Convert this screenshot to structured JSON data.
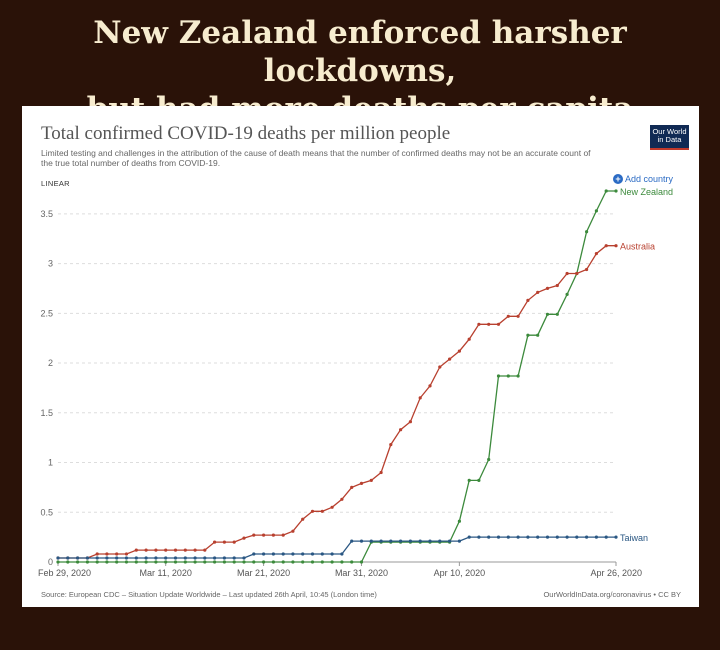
{
  "headline": {
    "line1": "New Zealand enforced harsher lockdowns,",
    "line2": "but had more deaths per capita"
  },
  "card": {
    "logo_line1": "Our World",
    "logo_line2": "in Data",
    "scale_label": "LINEAR",
    "add_country_label": "Add country",
    "source": "Source: European CDC – Situation Update Worldwide – Last updated 26th April, 10:45 (London time)",
    "credit": "OurWorldInData.org/coronavirus • CC BY"
  },
  "colors": {
    "new_zealand": "#3c8a3c",
    "australia": "#b8402f",
    "taiwan": "#2a5783",
    "background": "#2a1208",
    "headline_text": "#f7eccf"
  },
  "chart_data": {
    "type": "line",
    "title": "Total confirmed COVID-19 deaths per million people",
    "subtitle": "Limited testing and challenges in the attribution of the cause of death means that the number of confirmed deaths may not be an accurate count of the true total number of deaths from COVID-19.",
    "xlabel": "",
    "ylabel": "",
    "ylim": [
      0,
      3.8
    ],
    "y_ticks": [
      0,
      0.5,
      1,
      1.5,
      2,
      2.5,
      3,
      3.5
    ],
    "x_tick_labels": [
      "Feb 29, 2020",
      "Mar 11, 2020",
      "Mar 21, 2020",
      "Mar 31, 2020",
      "Apr 10, 2020",
      "Apr 26, 2020"
    ],
    "x_tick_dates": [
      "2020-02-29",
      "2020-03-11",
      "2020-03-21",
      "2020-03-31",
      "2020-04-10",
      "2020-04-26"
    ],
    "x_range": [
      "2020-02-29",
      "2020-04-26"
    ],
    "grid": "horizontal dashed",
    "legend": "inline labels at right end of lines",
    "series": [
      {
        "name": "New Zealand",
        "x": [
          "2020-02-29",
          "2020-03-31",
          "2020-04-01",
          "2020-04-08",
          "2020-04-09",
          "2020-04-10",
          "2020-04-11",
          "2020-04-12",
          "2020-04-13",
          "2020-04-14",
          "2020-04-15",
          "2020-04-16",
          "2020-04-17",
          "2020-04-18",
          "2020-04-19",
          "2020-04-20",
          "2020-04-21",
          "2020-04-22",
          "2020-04-23",
          "2020-04-24",
          "2020-04-25",
          "2020-04-26"
        ],
        "values": [
          0,
          0,
          0.2,
          0.2,
          0.2,
          0.41,
          0.82,
          0.82,
          1.03,
          1.87,
          1.87,
          1.87,
          2.28,
          2.28,
          2.49,
          2.49,
          2.69,
          2.9,
          3.32,
          3.53,
          3.73,
          3.73
        ]
      },
      {
        "name": "Australia",
        "x": [
          "2020-02-29",
          "2020-03-01",
          "2020-03-04",
          "2020-03-07",
          "2020-03-08",
          "2020-03-15",
          "2020-03-16",
          "2020-03-17",
          "2020-03-19",
          "2020-03-20",
          "2020-03-23",
          "2020-03-24",
          "2020-03-25",
          "2020-03-26",
          "2020-03-27",
          "2020-03-28",
          "2020-03-29",
          "2020-03-30",
          "2020-03-31",
          "2020-04-01",
          "2020-04-02",
          "2020-04-03",
          "2020-04-04",
          "2020-04-05",
          "2020-04-06",
          "2020-04-07",
          "2020-04-08",
          "2020-04-09",
          "2020-04-10",
          "2020-04-11",
          "2020-04-12",
          "2020-04-13",
          "2020-04-14",
          "2020-04-15",
          "2020-04-16",
          "2020-04-17",
          "2020-04-18",
          "2020-04-19",
          "2020-04-20",
          "2020-04-21",
          "2020-04-22",
          "2020-04-23",
          "2020-04-24",
          "2020-04-25",
          "2020-04-26"
        ],
        "values": [
          0.04,
          0.04,
          0.08,
          0.08,
          0.12,
          0.12,
          0.2,
          0.2,
          0.24,
          0.27,
          0.27,
          0.31,
          0.43,
          0.51,
          0.51,
          0.55,
          0.63,
          0.75,
          0.79,
          0.82,
          0.9,
          1.18,
          1.33,
          1.41,
          1.65,
          1.77,
          1.96,
          2.04,
          2.12,
          2.24,
          2.39,
          2.39,
          2.39,
          2.47,
          2.47,
          2.63,
          2.71,
          2.75,
          2.78,
          2.9,
          2.9,
          2.94,
          3.1,
          3.18,
          3.18
        ]
      },
      {
        "name": "Taiwan",
        "x": [
          "2020-02-29",
          "2020-03-20",
          "2020-03-30",
          "2020-04-11",
          "2020-04-26"
        ],
        "values": [
          0.04,
          0.08,
          0.21,
          0.25,
          0.25
        ]
      }
    ]
  }
}
